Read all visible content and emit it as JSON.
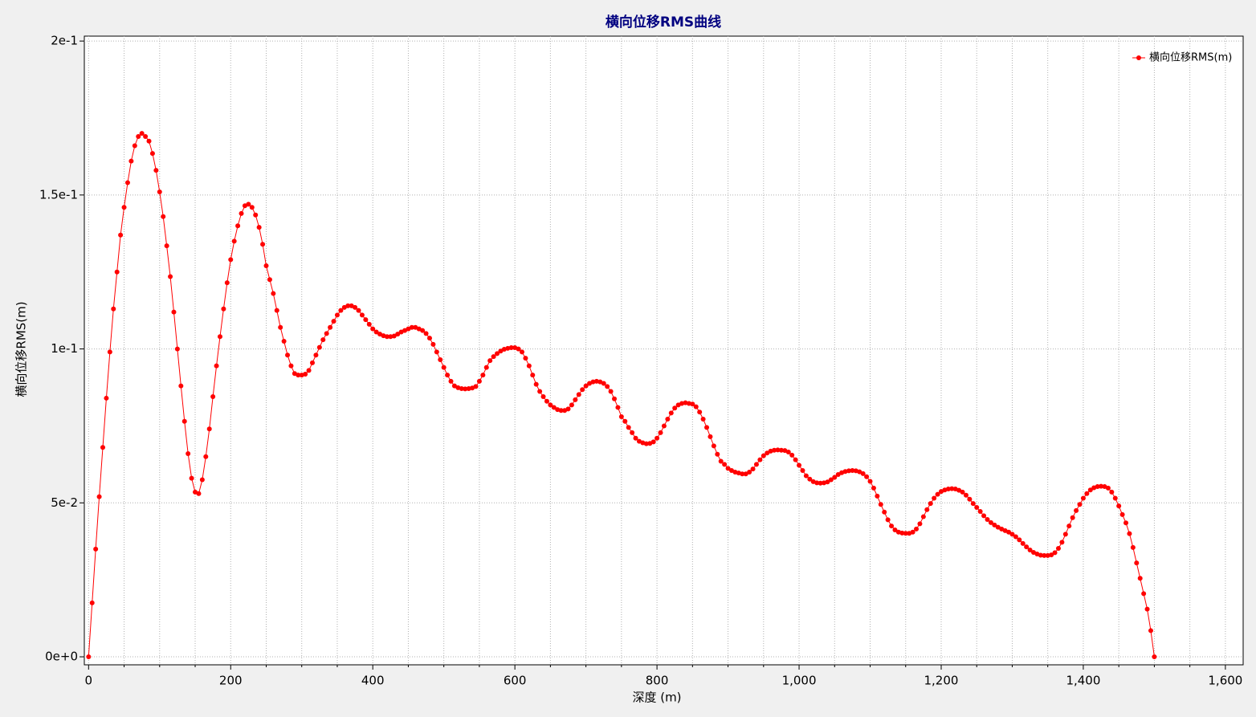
{
  "chart_data": {
    "type": "line",
    "title": "横向位移RMS曲线",
    "xlabel": "深度 (m)",
    "ylabel": "横向位移RMS(m)",
    "legend": "upper right",
    "grid": true,
    "xlim": [
      -6,
      1625
    ],
    "ylim": [
      -0.0026,
      0.2016
    ],
    "xticks": [
      0,
      200,
      400,
      600,
      800,
      {
        "value": 1000,
        "label": "1,000"
      },
      {
        "value": 1200,
        "label": "1,200"
      },
      {
        "value": 1400,
        "label": "1,400"
      },
      {
        "value": 1600,
        "label": "1,600"
      }
    ],
    "xminorticks": [
      50,
      100,
      150,
      250,
      300,
      350,
      450,
      500,
      550,
      650,
      700,
      750,
      850,
      900,
      950,
      1050,
      1100,
      1150,
      1250,
      1300,
      1350,
      1450,
      1500,
      1550
    ],
    "yticks": [
      {
        "value": 0,
        "label": "0e+0"
      },
      {
        "value": 0.05,
        "label": "5e-2"
      },
      {
        "value": 0.1,
        "label": "1e-1"
      },
      {
        "value": 0.15,
        "label": "1.5e-1"
      },
      {
        "value": 0.2,
        "label": "2e-1"
      }
    ],
    "x": [
      0,
      5,
      10,
      15,
      20,
      25,
      30,
      35,
      40,
      45,
      50,
      55,
      60,
      65,
      70,
      75,
      80,
      85,
      90,
      95,
      100,
      105,
      110,
      115,
      120,
      125,
      130,
      135,
      140,
      145,
      150,
      155,
      160,
      165,
      170,
      175,
      180,
      185,
      190,
      195,
      200,
      205,
      210,
      215,
      220,
      225,
      230,
      235,
      240,
      245,
      250,
      255,
      260,
      265,
      270,
      275,
      280,
      285,
      290,
      295,
      300,
      305,
      310,
      315,
      320,
      325,
      330,
      335,
      340,
      345,
      350,
      355,
      360,
      365,
      370,
      375,
      380,
      385,
      390,
      395,
      400,
      405,
      410,
      415,
      420,
      425,
      430,
      435,
      440,
      445,
      450,
      455,
      460,
      465,
      470,
      475,
      480,
      485,
      490,
      495,
      500,
      505,
      510,
      515,
      520,
      525,
      530,
      535,
      540,
      545,
      550,
      555,
      560,
      565,
      570,
      575,
      580,
      585,
      590,
      595,
      600,
      605,
      610,
      615,
      620,
      625,
      630,
      635,
      640,
      645,
      650,
      655,
      660,
      665,
      670,
      675,
      680,
      685,
      690,
      695,
      700,
      705,
      710,
      715,
      720,
      725,
      730,
      735,
      740,
      745,
      750,
      755,
      760,
      765,
      770,
      775,
      780,
      785,
      790,
      795,
      800,
      805,
      810,
      815,
      820,
      825,
      830,
      835,
      840,
      845,
      850,
      855,
      860,
      865,
      870,
      875,
      880,
      885,
      890,
      895,
      900,
      905,
      910,
      915,
      920,
      925,
      930,
      935,
      940,
      945,
      950,
      955,
      960,
      965,
      970,
      975,
      980,
      985,
      990,
      995,
      1000,
      1005,
      1010,
      1015,
      1020,
      1025,
      1030,
      1035,
      1040,
      1045,
      1050,
      1055,
      1060,
      1065,
      1070,
      1075,
      1080,
      1085,
      1090,
      1095,
      1100,
      1105,
      1110,
      1115,
      1120,
      1125,
      1130,
      1135,
      1140,
      1145,
      1150,
      1155,
      1160,
      1165,
      1170,
      1175,
      1180,
      1185,
      1190,
      1195,
      1200,
      1205,
      1210,
      1215,
      1220,
      1225,
      1230,
      1235,
      1240,
      1245,
      1250,
      1255,
      1260,
      1265,
      1270,
      1275,
      1280,
      1285,
      1290,
      1295,
      1300,
      1305,
      1310,
      1315,
      1320,
      1325,
      1330,
      1335,
      1340,
      1345,
      1350,
      1355,
      1360,
      1365,
      1370,
      1375,
      1380,
      1385,
      1390,
      1395,
      1400,
      1405,
      1410,
      1415,
      1420,
      1425,
      1430,
      1435,
      1440,
      1445,
      1450,
      1455,
      1460,
      1465,
      1470,
      1475,
      1480,
      1485,
      1490,
      1495,
      1500
    ],
    "series": [
      {
        "name": "横向位移RMS(m)",
        "color": "#ff0000",
        "values": [
          0,
          0.0175,
          0.035,
          0.052,
          0.068,
          0.084,
          0.099,
          0.113,
          0.125,
          0.137,
          0.146,
          0.154,
          0.161,
          0.166,
          0.169,
          0.17,
          0.169,
          0.1675,
          0.1635,
          0.158,
          0.151,
          0.143,
          0.1335,
          0.1235,
          0.112,
          0.1,
          0.088,
          0.0765,
          0.066,
          0.058,
          0.0535,
          0.053,
          0.0575,
          0.065,
          0.074,
          0.0845,
          0.0945,
          0.104,
          0.113,
          0.1215,
          0.129,
          0.135,
          0.14,
          0.144,
          0.1465,
          0.147,
          0.146,
          0.1435,
          0.1395,
          0.134,
          0.127,
          0.1225,
          0.118,
          0.1125,
          0.107,
          0.1025,
          0.098,
          0.0945,
          0.092,
          0.0915,
          0.0915,
          0.0918,
          0.093,
          0.0955,
          0.098,
          0.1005,
          0.103,
          0.105,
          0.107,
          0.109,
          0.111,
          0.1125,
          0.1135,
          0.114,
          0.114,
          0.1135,
          0.1125,
          0.111,
          0.1095,
          0.108,
          0.1065,
          0.1055,
          0.1048,
          0.1043,
          0.104,
          0.104,
          0.1042,
          0.1048,
          0.1055,
          0.106,
          0.1065,
          0.107,
          0.107,
          0.1065,
          0.106,
          0.105,
          0.1035,
          0.1015,
          0.099,
          0.0965,
          0.094,
          0.0915,
          0.0895,
          0.088,
          0.0874,
          0.0871,
          0.087,
          0.0871,
          0.0873,
          0.0878,
          0.0895,
          0.0915,
          0.094,
          0.0962,
          0.0975,
          0.0985,
          0.0993,
          0.0999,
          0.1002,
          0.1004,
          0.1004,
          0.1,
          0.099,
          0.097,
          0.0945,
          0.0915,
          0.0885,
          0.0862,
          0.0845,
          0.083,
          0.0818,
          0.081,
          0.0803,
          0.08,
          0.08,
          0.0805,
          0.0818,
          0.0835,
          0.0852,
          0.0868,
          0.088,
          0.0888,
          0.0893,
          0.0895,
          0.0893,
          0.0888,
          0.0878,
          0.0862,
          0.0838,
          0.081,
          0.078,
          0.0765,
          0.0745,
          0.0728,
          0.071,
          0.07,
          0.0695,
          0.0692,
          0.0693,
          0.0698,
          0.071,
          0.0728,
          0.075,
          0.0772,
          0.0792,
          0.0808,
          0.0818,
          0.0823,
          0.0825,
          0.0823,
          0.0821,
          0.0812,
          0.0795,
          0.0772,
          0.0745,
          0.0715,
          0.0685,
          0.0658,
          0.0635,
          0.0625,
          0.0612,
          0.0605,
          0.06,
          0.0597,
          0.0594,
          0.0594,
          0.06,
          0.061,
          0.0625,
          0.064,
          0.0653,
          0.0662,
          0.0668,
          0.0671,
          0.0672,
          0.0671,
          0.067,
          0.0665,
          0.0655,
          0.064,
          0.0622,
          0.0605,
          0.0588,
          0.0577,
          0.0569,
          0.0565,
          0.0564,
          0.0565,
          0.0568,
          0.0575,
          0.0583,
          0.0592,
          0.0598,
          0.0602,
          0.0604,
          0.0605,
          0.0604,
          0.0601,
          0.0595,
          0.0585,
          0.057,
          0.0548,
          0.0522,
          0.0495,
          0.047,
          0.0445,
          0.0425,
          0.0412,
          0.0405,
          0.0402,
          0.0401,
          0.0401,
          0.0405,
          0.0415,
          0.0432,
          0.0455,
          0.0478,
          0.0498,
          0.0515,
          0.0528,
          0.0537,
          0.0542,
          0.0545,
          0.0546,
          0.0545,
          0.0541,
          0.0535,
          0.0525,
          0.0512,
          0.0498,
          0.0485,
          0.0472,
          0.0458,
          0.0446,
          0.0436,
          0.0428,
          0.0421,
          0.0415,
          0.041,
          0.0405,
          0.0398,
          0.039,
          0.038,
          0.0368,
          0.0357,
          0.0347,
          0.0339,
          0.0334,
          0.033,
          0.0329,
          0.0329,
          0.0331,
          0.0338,
          0.0352,
          0.0372,
          0.0398,
          0.0425,
          0.0452,
          0.0475,
          0.0495,
          0.0515,
          0.053,
          0.0542,
          0.0549,
          0.0553,
          0.0554,
          0.0553,
          0.0548,
          0.0535,
          0.0515,
          0.049,
          0.0462,
          0.0435,
          0.04,
          0.0355,
          0.0305,
          0.0255,
          0.0205,
          0.0155,
          0.0085,
          0
        ]
      }
    ]
  }
}
